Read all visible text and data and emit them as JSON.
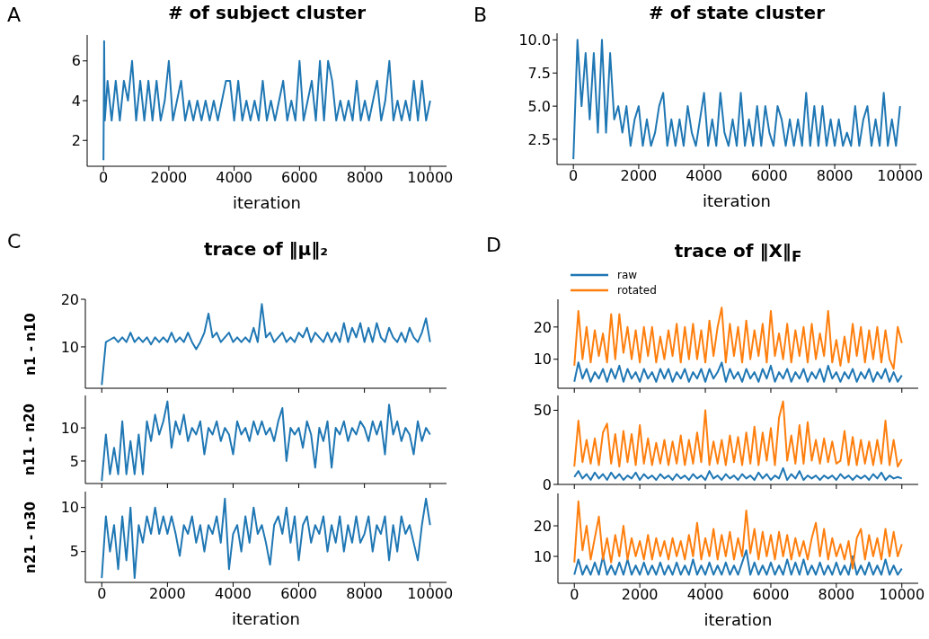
{
  "chart_data": [
    {
      "type": "line",
      "title": "# of subject cluster",
      "xlabel": "iteration",
      "annotations": [
        "A"
      ],
      "color": "#1f77b4",
      "xlim": [
        -500,
        10500
      ],
      "xticks": [
        0,
        2000,
        4000,
        6000,
        8000,
        10000
      ],
      "ylim": [
        0.7,
        7.3
      ],
      "yticks": [
        2,
        4,
        6
      ],
      "x": [
        0,
        20,
        40,
        125,
        250,
        375,
        500,
        625,
        750,
        875,
        1000,
        1125,
        1250,
        1375,
        1500,
        1625,
        1750,
        1875,
        2000,
        2125,
        2250,
        2375,
        2500,
        2625,
        2750,
        2875,
        3000,
        3125,
        3250,
        3375,
        3500,
        3625,
        3750,
        3875,
        4000,
        4125,
        4250,
        4375,
        4500,
        4625,
        4750,
        4875,
        5000,
        5125,
        5250,
        5375,
        5500,
        5625,
        5750,
        5875,
        6000,
        6125,
        6250,
        6375,
        6500,
        6625,
        6750,
        6875,
        7000,
        7125,
        7250,
        7375,
        7500,
        7625,
        7750,
        7875,
        8000,
        8125,
        8250,
        8375,
        8500,
        8625,
        8750,
        8875,
        9000,
        9125,
        9250,
        9375,
        9500,
        9625,
        9750,
        9875,
        10000
      ],
      "values": [
        1,
        7,
        3,
        5,
        3,
        5,
        3,
        5,
        4,
        6,
        3,
        5,
        3,
        5,
        3,
        5,
        3,
        4,
        6,
        3,
        4,
        5,
        3,
        4,
        3,
        4,
        3,
        4,
        3,
        4,
        3,
        4,
        5,
        5,
        3,
        5,
        3,
        4,
        3,
        4,
        3,
        5,
        3,
        4,
        3,
        4,
        5,
        3,
        4,
        3,
        6,
        3,
        4,
        5,
        3,
        6,
        3,
        6,
        5,
        3,
        4,
        3,
        4,
        3,
        5,
        3,
        4,
        3,
        4,
        5,
        3,
        4,
        6,
        3,
        4,
        3,
        4,
        3,
        5,
        3,
        5,
        3,
        4
      ]
    },
    {
      "type": "line",
      "title": "# of state cluster",
      "xlabel": "iteration",
      "annotations": [
        "B"
      ],
      "color": "#1f77b4",
      "xlim": [
        -500,
        10500
      ],
      "xticks": [
        0,
        2000,
        4000,
        6000,
        8000,
        10000
      ],
      "ylim": [
        0.6,
        10.5
      ],
      "yticks": [
        2.5,
        {
          "value": 5,
          "label": "5.0"
        },
        7.5,
        {
          "value": 10,
          "label": "10.0"
        }
      ],
      "x": [
        0,
        125,
        250,
        375,
        500,
        625,
        750,
        875,
        1000,
        1125,
        1250,
        1375,
        1500,
        1625,
        1750,
        1875,
        2000,
        2125,
        2250,
        2375,
        2500,
        2625,
        2750,
        2875,
        3000,
        3125,
        3250,
        3375,
        3500,
        3625,
        3750,
        3875,
        4000,
        4125,
        4250,
        4375,
        4500,
        4625,
        4750,
        4875,
        5000,
        5125,
        5250,
        5375,
        5500,
        5625,
        5750,
        5875,
        6000,
        6125,
        6250,
        6375,
        6500,
        6625,
        6750,
        6875,
        7000,
        7125,
        7250,
        7375,
        7500,
        7625,
        7750,
        7875,
        8000,
        8125,
        8250,
        8375,
        8500,
        8625,
        8750,
        8875,
        9000,
        9125,
        9250,
        9375,
        9500,
        9625,
        9750,
        9875,
        10000
      ],
      "values": [
        1,
        10,
        5,
        9,
        4,
        9,
        3,
        10,
        3,
        9,
        4,
        5,
        3,
        5,
        2,
        4,
        5,
        2,
        4,
        2,
        3,
        5,
        6,
        2,
        4,
        2,
        4,
        2,
        5,
        3,
        2,
        4,
        6,
        2,
        4,
        2,
        6,
        3,
        2,
        4,
        2,
        6,
        2,
        4,
        2,
        5,
        2,
        5,
        3,
        2,
        5,
        4,
        2,
        4,
        2,
        4,
        2,
        6,
        2,
        5,
        2,
        5,
        2,
        4,
        2,
        4,
        2,
        3,
        2,
        5,
        2,
        4,
        5,
        2,
        4,
        2,
        6,
        2,
        4,
        2,
        5
      ]
    },
    {
      "type": "line",
      "title": "trace of ‖μ‖₂",
      "ylabel": "n1 - n10",
      "annotations": [
        "C"
      ],
      "tick_labels": "y",
      "color": "#1f77b4",
      "xlim": [
        -500,
        10500
      ],
      "xticks": [
        0,
        2000,
        4000,
        6000,
        8000,
        10000
      ],
      "ylim": [
        1.3,
        20
      ],
      "yticks": [
        10,
        20
      ],
      "x": [
        0,
        125,
        250,
        375,
        500,
        625,
        750,
        875,
        1000,
        1125,
        1250,
        1375,
        1500,
        1625,
        1750,
        1875,
        2000,
        2125,
        2250,
        2375,
        2500,
        2625,
        2750,
        2875,
        3000,
        3125,
        3250,
        3375,
        3500,
        3625,
        3750,
        3875,
        4000,
        4125,
        4250,
        4375,
        4500,
        4625,
        4750,
        4875,
        5000,
        5125,
        5250,
        5375,
        5500,
        5625,
        5750,
        5875,
        6000,
        6125,
        6250,
        6375,
        6500,
        6625,
        6750,
        6875,
        7000,
        7125,
        7250,
        7375,
        7500,
        7625,
        7750,
        7875,
        8000,
        8125,
        8250,
        8375,
        8500,
        8625,
        8750,
        8875,
        9000,
        9125,
        9250,
        9375,
        9500,
        9625,
        9750,
        9875,
        10000
      ],
      "values": [
        2,
        11,
        11.5,
        12,
        11,
        12,
        11,
        13,
        11,
        12,
        11,
        12,
        10.5,
        12,
        11,
        12,
        11,
        13,
        11,
        12,
        11,
        13,
        11,
        9.5,
        11,
        13,
        17,
        12,
        13,
        11,
        12,
        13,
        11,
        12,
        11,
        12,
        11,
        14,
        11,
        19,
        12,
        13,
        11,
        12,
        13,
        11,
        12,
        11,
        13,
        12,
        14,
        11,
        13,
        12,
        11,
        13,
        11,
        13,
        11,
        15,
        11,
        14,
        12,
        15,
        11,
        14,
        11,
        15,
        12,
        11,
        14,
        12,
        11,
        13,
        11,
        14,
        12,
        11,
        13,
        16,
        11
      ]
    },
    {
      "type": "line",
      "ylabel": "n11 - n20",
      "tick_labels": "y",
      "color": "#1f77b4",
      "xlim": [
        -500,
        10500
      ],
      "xticks": [
        0,
        2000,
        4000,
        6000,
        8000,
        10000
      ],
      "ylim": [
        1.6,
        14.9
      ],
      "yticks": [
        5,
        10
      ],
      "x": [
        0,
        125,
        250,
        375,
        500,
        625,
        750,
        875,
        1000,
        1125,
        1250,
        1375,
        1500,
        1625,
        1750,
        1875,
        2000,
        2125,
        2250,
        2375,
        2500,
        2625,
        2750,
        2875,
        3000,
        3125,
        3250,
        3375,
        3500,
        3625,
        3750,
        3875,
        4000,
        4125,
        4250,
        4375,
        4500,
        4625,
        4750,
        4875,
        5000,
        5125,
        5250,
        5375,
        5500,
        5625,
        5750,
        5875,
        6000,
        6125,
        6250,
        6375,
        6500,
        6625,
        6750,
        6875,
        7000,
        7125,
        7250,
        7375,
        7500,
        7625,
        7750,
        7875,
        8000,
        8125,
        8250,
        8375,
        8500,
        8625,
        8750,
        8875,
        9000,
        9125,
        9250,
        9375,
        9500,
        9625,
        9750,
        9875,
        10000
      ],
      "values": [
        2,
        9,
        3,
        7,
        3,
        11,
        3,
        8,
        3,
        9,
        3,
        11,
        8,
        12,
        9,
        11,
        14,
        7,
        11,
        9,
        12,
        8,
        10,
        9,
        11,
        6,
        10,
        9,
        11,
        8,
        10,
        9,
        6,
        11,
        9,
        10,
        8,
        11,
        9,
        11,
        9,
        10,
        8,
        11,
        13,
        5,
        10,
        9,
        10,
        7,
        11,
        9,
        4,
        10,
        8,
        11,
        4,
        10,
        9,
        11,
        8,
        10,
        9,
        11,
        10,
        8,
        11,
        9,
        11,
        6,
        13.5,
        9,
        11,
        8,
        10,
        9,
        6,
        11,
        8,
        10,
        9
      ]
    },
    {
      "type": "line",
      "ylabel": "n21 - n30",
      "xlabel": "iteration",
      "color": "#1f77b4",
      "xlim": [
        -500,
        10500
      ],
      "xticks": [
        0,
        2000,
        4000,
        6000,
        8000,
        10000
      ],
      "ylim": [
        1.5,
        11.8
      ],
      "yticks": [
        5,
        10
      ],
      "x": [
        0,
        125,
        250,
        375,
        500,
        625,
        750,
        875,
        1000,
        1125,
        1250,
        1375,
        1500,
        1625,
        1750,
        1875,
        2000,
        2125,
        2250,
        2375,
        2500,
        2625,
        2750,
        2875,
        3000,
        3125,
        3250,
        3375,
        3500,
        3625,
        3750,
        3875,
        4000,
        4125,
        4250,
        4375,
        4500,
        4625,
        4750,
        4875,
        5000,
        5125,
        5250,
        5375,
        5500,
        5625,
        5750,
        5875,
        6000,
        6125,
        6250,
        6375,
        6500,
        6625,
        6750,
        6875,
        7000,
        7125,
        7250,
        7375,
        7500,
        7625,
        7750,
        7875,
        8000,
        8125,
        8250,
        8375,
        8500,
        8625,
        8750,
        8875,
        9000,
        9125,
        9250,
        9375,
        9500,
        9625,
        9750,
        9875,
        10000
      ],
      "values": [
        2,
        9,
        5,
        8,
        3,
        9,
        4,
        10,
        2,
        8,
        6,
        9,
        7,
        10,
        7,
        9,
        7,
        9,
        7,
        4.5,
        8,
        7,
        9,
        6,
        8,
        5,
        8,
        7,
        9,
        6,
        11,
        3,
        7,
        8,
        5,
        9,
        6,
        10,
        7,
        8,
        6,
        3.5,
        8,
        9,
        7,
        10,
        6,
        9,
        4,
        8,
        9,
        6,
        8,
        7,
        9,
        5,
        8,
        6,
        9,
        5,
        8,
        6,
        9,
        6,
        7,
        9,
        5,
        8,
        7,
        9,
        4,
        8,
        5,
        9,
        7,
        8,
        6,
        4,
        8,
        11,
        8
      ]
    },
    {
      "type": "line",
      "title": "trace of ‖X‖$_{F}$",
      "annotations": [
        "D"
      ],
      "legend": "top left",
      "tick_labels": "y",
      "xlim": [
        -500,
        10500
      ],
      "xticks": [
        0,
        2000,
        4000,
        6000,
        8000,
        10000
      ],
      "ylim": [
        1,
        28.6
      ],
      "yticks": [
        10,
        20
      ],
      "x": [
        0,
        125,
        250,
        375,
        500,
        625,
        750,
        875,
        1000,
        1125,
        1250,
        1375,
        1500,
        1625,
        1750,
        1875,
        2000,
        2125,
        2250,
        2375,
        2500,
        2625,
        2750,
        2875,
        3000,
        3125,
        3250,
        3375,
        3500,
        3625,
        3750,
        3875,
        4000,
        4125,
        4250,
        4375,
        4500,
        4625,
        4750,
        4875,
        5000,
        5125,
        5250,
        5375,
        5500,
        5625,
        5750,
        5875,
        6000,
        6125,
        6250,
        6375,
        6500,
        6625,
        6750,
        6875,
        7000,
        7125,
        7250,
        7375,
        7500,
        7625,
        7750,
        7875,
        8000,
        8125,
        8250,
        8375,
        8500,
        8625,
        8750,
        8875,
        9000,
        9125,
        9250,
        9375,
        9500,
        9625,
        9750,
        9875,
        10000
      ],
      "series": [
        {
          "name": "raw",
          "color": "#1f77b4",
          "values": [
            3,
            9,
            4,
            7,
            3,
            6,
            4,
            7,
            3,
            7,
            4,
            8,
            3,
            7,
            4,
            6,
            3,
            7,
            4,
            6,
            3,
            7,
            4,
            7,
            3,
            6,
            4,
            7,
            3,
            6,
            4,
            7,
            3,
            7,
            4,
            6,
            9,
            3,
            7,
            4,
            6,
            3,
            7,
            4,
            6,
            3,
            7,
            4,
            8,
            3,
            6,
            4,
            7,
            3,
            6,
            4,
            7,
            3,
            6,
            4,
            7,
            3,
            8,
            4,
            6,
            3,
            6,
            4,
            7,
            3,
            6,
            4,
            7,
            3,
            6,
            4,
            7,
            3,
            6,
            3,
            5
          ]
        },
        {
          "name": "rotated",
          "color": "#ff7f0e",
          "values": [
            8,
            25,
            10,
            20,
            9,
            19,
            11,
            18,
            9,
            24,
            10,
            24,
            12,
            20,
            10,
            19,
            9,
            20,
            11,
            20,
            9,
            17,
            10,
            19,
            11,
            21,
            9,
            20,
            10,
            21,
            10,
            19,
            9,
            22,
            11,
            20,
            26,
            9,
            21,
            11,
            20,
            9,
            22,
            10,
            19,
            11,
            21,
            9,
            25,
            11,
            18,
            10,
            21,
            9,
            19,
            11,
            20,
            9,
            21,
            10,
            18,
            11,
            25,
            9,
            16,
            8,
            17,
            9,
            21,
            11,
            20,
            9,
            19,
            10,
            20,
            9,
            19,
            10,
            7,
            20,
            15
          ]
        }
      ]
    },
    {
      "type": "line",
      "tick_labels": "y",
      "xlim": [
        -500,
        10500
      ],
      "xticks": [
        0,
        2000,
        4000,
        6000,
        8000,
        10000
      ],
      "ylim": [
        0,
        60
      ],
      "yticks": [
        0,
        50
      ],
      "x": [
        0,
        125,
        250,
        375,
        500,
        625,
        750,
        875,
        1000,
        1125,
        1250,
        1375,
        1500,
        1625,
        1750,
        1875,
        2000,
        2125,
        2250,
        2375,
        2500,
        2625,
        2750,
        2875,
        3000,
        3125,
        3250,
        3375,
        3500,
        3625,
        3750,
        3875,
        4000,
        4125,
        4250,
        4375,
        4500,
        4625,
        4750,
        4875,
        5000,
        5125,
        5250,
        5375,
        5500,
        5625,
        5750,
        5875,
        6000,
        6125,
        6250,
        6375,
        6500,
        6625,
        6750,
        6875,
        7000,
        7125,
        7250,
        7375,
        7500,
        7625,
        7750,
        7875,
        8000,
        8125,
        8250,
        8375,
        8500,
        8625,
        8750,
        8875,
        9000,
        9125,
        9250,
        9375,
        9500,
        9625,
        9750,
        9875,
        10000
      ],
      "series": [
        {
          "color": "#1f77b4",
          "values": [
            5,
            9,
            4,
            7,
            3,
            8,
            4,
            7,
            3,
            8,
            4,
            7,
            3,
            6,
            4,
            8,
            3,
            7,
            4,
            6,
            3,
            7,
            4,
            6,
            3,
            7,
            4,
            6,
            3,
            7,
            4,
            6,
            3,
            9,
            4,
            6,
            3,
            7,
            4,
            6,
            3,
            7,
            4,
            6,
            3,
            8,
            4,
            7,
            3,
            6,
            4,
            11,
            3,
            7,
            4,
            9,
            3,
            6,
            4,
            6,
            3,
            6,
            4,
            6,
            3,
            7,
            4,
            6,
            3,
            6,
            4,
            6,
            3,
            7,
            4,
            8,
            3,
            6,
            4,
            5,
            4
          ]
        },
        {
          "color": "#ff7f0e",
          "values": [
            12,
            43,
            15,
            30,
            14,
            31,
            13,
            35,
            41,
            14,
            34,
            12,
            36,
            15,
            34,
            13,
            40,
            14,
            31,
            13,
            28,
            14,
            30,
            13,
            29,
            14,
            33,
            13,
            30,
            14,
            35,
            15,
            50,
            13,
            29,
            14,
            30,
            13,
            33,
            15,
            32,
            13,
            35,
            14,
            39,
            13,
            35,
            16,
            38,
            13,
            45,
            56,
            16,
            33,
            14,
            40,
            14,
            42,
            16,
            30,
            14,
            31,
            15,
            29,
            14,
            16,
            36,
            13,
            32,
            13,
            30,
            14,
            29,
            13,
            30,
            14,
            43,
            13,
            30,
            12,
            17
          ]
        }
      ]
    },
    {
      "type": "line",
      "xlabel": "iteration",
      "xlim": [
        -500,
        10500
      ],
      "xticks": [
        0,
        2000,
        4000,
        6000,
        8000,
        10000
      ],
      "ylim": [
        1.2,
        30.6
      ],
      "yticks": [
        10,
        20
      ],
      "x": [
        0,
        125,
        250,
        375,
        500,
        625,
        750,
        875,
        1000,
        1125,
        1250,
        1375,
        1500,
        1625,
        1750,
        1875,
        2000,
        2125,
        2250,
        2375,
        2500,
        2625,
        2750,
        2875,
        3000,
        3125,
        3250,
        3375,
        3500,
        3625,
        3750,
        3875,
        4000,
        4125,
        4250,
        4375,
        4500,
        4625,
        4750,
        4875,
        5000,
        5125,
        5250,
        5375,
        5500,
        5625,
        5750,
        5875,
        6000,
        6125,
        6250,
        6375,
        6500,
        6625,
        6750,
        6875,
        7000,
        7125,
        7250,
        7375,
        7500,
        7625,
        7750,
        7875,
        8000,
        8125,
        8250,
        8375,
        8500,
        8625,
        8750,
        8875,
        9000,
        9125,
        9250,
        9375,
        9500,
        9625,
        9750,
        9875,
        10000
      ],
      "series": [
        {
          "color": "#1f77b4",
          "values": [
            4,
            9,
            4,
            7,
            4,
            8,
            4,
            10,
            4,
            7,
            4,
            8,
            4,
            9,
            4,
            7,
            4,
            8,
            4,
            7,
            4,
            8,
            4,
            7,
            4,
            8,
            4,
            7,
            4,
            9,
            4,
            7,
            4,
            8,
            4,
            7,
            4,
            8,
            4,
            7,
            4,
            8,
            12,
            4,
            8,
            4,
            7,
            4,
            8,
            4,
            7,
            4,
            9,
            4,
            8,
            4,
            9,
            4,
            7,
            4,
            8,
            4,
            7,
            4,
            8,
            4,
            7,
            4,
            10,
            4,
            7,
            4,
            8,
            4,
            7,
            4,
            9,
            4,
            7,
            4,
            6
          ]
        },
        {
          "color": "#ff7f0e",
          "values": [
            8,
            28,
            12,
            20,
            9,
            16,
            23,
            9,
            16,
            8,
            17,
            10,
            20,
            9,
            16,
            10,
            15,
            9,
            17,
            9,
            16,
            10,
            15,
            9,
            16,
            10,
            15,
            9,
            17,
            10,
            21,
            9,
            16,
            10,
            19,
            9,
            17,
            10,
            18,
            9,
            16,
            10,
            25,
            11,
            19,
            9,
            18,
            10,
            17,
            9,
            18,
            10,
            17,
            9,
            16,
            10,
            15,
            9,
            16,
            21,
            10,
            19,
            9,
            16,
            10,
            14,
            9,
            15,
            6,
            16,
            19,
            9,
            17,
            10,
            16,
            9,
            19,
            10,
            18,
            10,
            14
          ]
        }
      ]
    }
  ]
}
